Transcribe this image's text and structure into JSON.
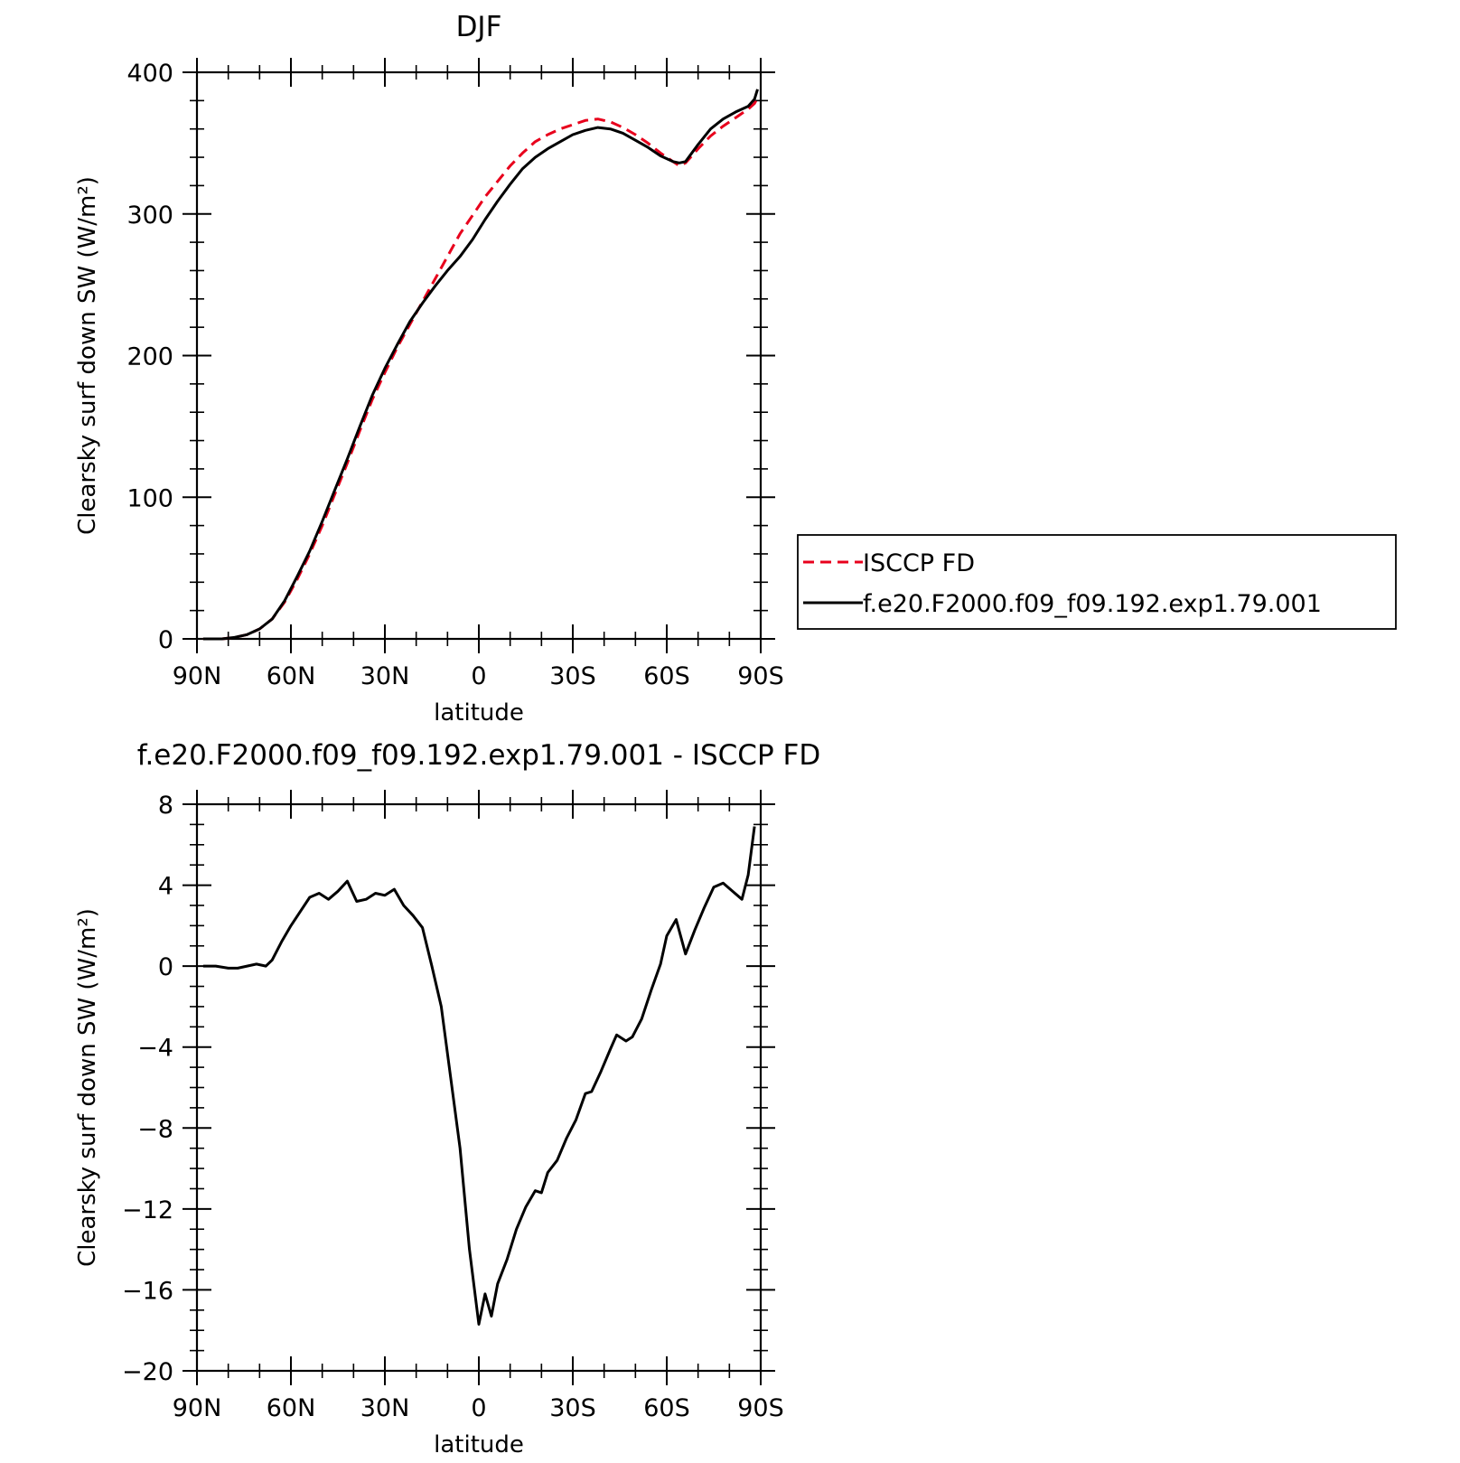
{
  "chart_data": [
    {
      "type": "line",
      "title": "DJF",
      "xlabel": "latitude",
      "ylabel": "Clearsky surf down SW (W/m²)",
      "xlim": [
        90,
        -90
      ],
      "ylim": [
        0,
        400
      ],
      "x_ticks": [
        90,
        60,
        30,
        0,
        -30,
        -60,
        -90
      ],
      "x_tick_labels": [
        "90N",
        "60N",
        "30N",
        "0",
        "30S",
        "60S",
        "90S"
      ],
      "y_ticks": [
        0,
        100,
        200,
        300,
        400
      ],
      "y_tick_labels": [
        "0",
        "100",
        "200",
        "300",
        "400"
      ],
      "legend": {
        "placement": "right-outside"
      },
      "series": [
        {
          "name": "ISCCP FD",
          "color": "#e8001c",
          "style": "dashed",
          "points": [
            [
              88,
              0
            ],
            [
              82,
              0
            ],
            [
              78,
              1
            ],
            [
              74,
              3
            ],
            [
              70,
              7
            ],
            [
              66,
              14
            ],
            [
              62,
              26
            ],
            [
              58,
              42
            ],
            [
              54,
              60
            ],
            [
              50,
              80
            ],
            [
              46,
              102
            ],
            [
              42,
              124
            ],
            [
              38,
              147
            ],
            [
              34,
              169
            ],
            [
              30,
              188
            ],
            [
              26,
              206
            ],
            [
              22,
              222
            ],
            [
              18,
              238
            ],
            [
              14,
              254
            ],
            [
              10,
              270
            ],
            [
              6,
              286
            ],
            [
              2,
              299
            ],
            [
              -2,
              312
            ],
            [
              -6,
              323
            ],
            [
              -10,
              334
            ],
            [
              -14,
              343
            ],
            [
              -18,
              351
            ],
            [
              -22,
              356
            ],
            [
              -26,
              360
            ],
            [
              -30,
              363
            ],
            [
              -34,
              366
            ],
            [
              -38,
              367
            ],
            [
              -42,
              365
            ],
            [
              -46,
              361
            ],
            [
              -50,
              356
            ],
            [
              -54,
              350
            ],
            [
              -58,
              343
            ],
            [
              -62,
              337
            ],
            [
              -64,
              334
            ],
            [
              -66,
              336
            ],
            [
              -70,
              346
            ],
            [
              -74,
              355
            ],
            [
              -78,
              362
            ],
            [
              -82,
              368
            ],
            [
              -86,
              374
            ],
            [
              -88,
              378
            ],
            [
              -89,
              382
            ]
          ]
        },
        {
          "name": "f.e20.F2000.f09_f09.192.exp1.79.001",
          "color": "#000000",
          "style": "solid",
          "points": [
            [
              88,
              0
            ],
            [
              82,
              0
            ],
            [
              78,
              1
            ],
            [
              74,
              3
            ],
            [
              70,
              7
            ],
            [
              66,
              14
            ],
            [
              62,
              27
            ],
            [
              58,
              44
            ],
            [
              54,
              62
            ],
            [
              50,
              83
            ],
            [
              46,
              105
            ],
            [
              42,
              127
            ],
            [
              38,
              150
            ],
            [
              34,
              172
            ],
            [
              30,
              191
            ],
            [
              26,
              208
            ],
            [
              22,
              224
            ],
            [
              18,
              237
            ],
            [
              14,
              249
            ],
            [
              10,
              260
            ],
            [
              6,
              270
            ],
            [
              2,
              282
            ],
            [
              -2,
              296
            ],
            [
              -6,
              309
            ],
            [
              -10,
              321
            ],
            [
              -14,
              332
            ],
            [
              -18,
              340
            ],
            [
              -22,
              346
            ],
            [
              -26,
              351
            ],
            [
              -30,
              356
            ],
            [
              -34,
              359
            ],
            [
              -38,
              361
            ],
            [
              -42,
              360
            ],
            [
              -46,
              357
            ],
            [
              -50,
              352
            ],
            [
              -54,
              347
            ],
            [
              -58,
              341
            ],
            [
              -62,
              337
            ],
            [
              -64,
              336
            ],
            [
              -66,
              337
            ],
            [
              -70,
              349
            ],
            [
              -74,
              360
            ],
            [
              -78,
              367
            ],
            [
              -82,
              372
            ],
            [
              -86,
              376
            ],
            [
              -88,
              381
            ],
            [
              -89,
              388
            ]
          ]
        }
      ]
    },
    {
      "type": "line",
      "title": "f.e20.F2000.f09_f09.192.exp1.79.001 - ISCCP FD",
      "xlabel": "latitude",
      "ylabel": "Clearsky surf down SW (W/m²)",
      "xlim": [
        90,
        -90
      ],
      "ylim": [
        -20,
        8
      ],
      "x_ticks": [
        90,
        60,
        30,
        0,
        -30,
        -60,
        -90
      ],
      "x_tick_labels": [
        "90N",
        "60N",
        "30N",
        "0",
        "30S",
        "60S",
        "90S"
      ],
      "y_ticks": [
        -20,
        -16,
        -12,
        -8,
        -4,
        0,
        4,
        8
      ],
      "y_tick_labels": [
        "−20",
        "−16",
        "−12",
        "−8",
        "−4",
        "0",
        "4",
        "8"
      ],
      "series": [
        {
          "color": "#000000",
          "style": "solid",
          "points": [
            [
              88,
              0
            ],
            [
              84,
              0
            ],
            [
              80,
              -0.1
            ],
            [
              77,
              -0.1
            ],
            [
              74,
              0
            ],
            [
              71,
              0.1
            ],
            [
              68,
              0
            ],
            [
              66,
              0.3
            ],
            [
              63,
              1.2
            ],
            [
              60,
              2.0
            ],
            [
              57,
              2.7
            ],
            [
              54,
              3.4
            ],
            [
              51,
              3.6
            ],
            [
              48,
              3.3
            ],
            [
              45,
              3.7
            ],
            [
              42,
              4.2
            ],
            [
              39,
              3.2
            ],
            [
              36,
              3.3
            ],
            [
              33,
              3.6
            ],
            [
              30,
              3.5
            ],
            [
              27,
              3.8
            ],
            [
              24,
              3.0
            ],
            [
              21,
              2.5
            ],
            [
              18,
              1.9
            ],
            [
              15,
              0
            ],
            [
              12,
              -2
            ],
            [
              9,
              -5.5
            ],
            [
              6,
              -9
            ],
            [
              3,
              -14
            ],
            [
              0,
              -17.7
            ],
            [
              -2,
              -16.2
            ],
            [
              -4,
              -17.3
            ],
            [
              -6,
              -15.7
            ],
            [
              -9,
              -14.5
            ],
            [
              -12,
              -13
            ],
            [
              -15,
              -11.9
            ],
            [
              -18,
              -11.1
            ],
            [
              -20,
              -11.2
            ],
            [
              -22,
              -10.2
            ],
            [
              -25,
              -9.6
            ],
            [
              -28,
              -8.5
            ],
            [
              -31,
              -7.6
            ],
            [
              -34,
              -6.3
            ],
            [
              -36,
              -6.2
            ],
            [
              -39,
              -5.2
            ],
            [
              -42,
              -4.1
            ],
            [
              -44,
              -3.4
            ],
            [
              -47,
              -3.7
            ],
            [
              -49,
              -3.5
            ],
            [
              -52,
              -2.6
            ],
            [
              -55,
              -1.2
            ],
            [
              -58,
              0.1
            ],
            [
              -60,
              1.5
            ],
            [
              -63,
              2.3
            ],
            [
              -66,
              0.6
            ],
            [
              -69,
              1.8
            ],
            [
              -72,
              2.9
            ],
            [
              -75,
              3.9
            ],
            [
              -78,
              4.1
            ],
            [
              -81,
              3.7
            ],
            [
              -84,
              3.3
            ],
            [
              -86,
              4.5
            ],
            [
              -88,
              6.9
            ]
          ]
        }
      ]
    }
  ]
}
